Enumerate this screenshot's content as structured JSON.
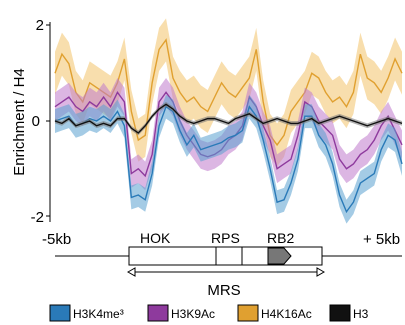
{
  "chart_data": {
    "type": "line",
    "ylabel": "Enrichment / H4",
    "ylim": [
      -2.1,
      2.1
    ],
    "yticks": [
      "2",
      "0",
      "-2"
    ],
    "xlim": [
      0,
      100
    ],
    "x_tick_labels": {
      "left": "-5kb",
      "right": "+ 5kb"
    },
    "grid": false,
    "legend_position": "bottom",
    "x": [
      0,
      2,
      4,
      6,
      8,
      10,
      12,
      14,
      16,
      18,
      20,
      22,
      24,
      26,
      28,
      30,
      32,
      34,
      36,
      38,
      40,
      42,
      44,
      46,
      48,
      50,
      52,
      54,
      56,
      58,
      60,
      62,
      64,
      66,
      68,
      70,
      72,
      74,
      76,
      78,
      80,
      82,
      84,
      86,
      88,
      90,
      92,
      94,
      96,
      98,
      100
    ],
    "series": [
      {
        "name": "H3K4me³",
        "color": "#2a7ab8",
        "band_color": "#5aa0d0",
        "values": [
          0.0,
          0.05,
          0.1,
          -0.1,
          -0.05,
          0.05,
          0.0,
          0.1,
          0.0,
          0.2,
          -0.1,
          -1.6,
          -1.55,
          -1.65,
          -1.1,
          -0.1,
          0.3,
          0.2,
          -0.2,
          -0.5,
          -0.3,
          -0.6,
          -0.55,
          -0.5,
          -0.45,
          -0.35,
          -0.3,
          -0.2,
          0.3,
          0.1,
          -0.4,
          -1.0,
          -1.7,
          -1.65,
          -1.3,
          -0.8,
          0.1,
          0.1,
          -0.3,
          -0.5,
          -0.9,
          -1.55,
          -1.9,
          -1.7,
          -1.3,
          -1.2,
          -1.1,
          -0.6,
          -0.3,
          -0.4,
          -0.9
        ],
        "spread": 0.25
      },
      {
        "name": "H3K9Ac",
        "color": "#8e3a9d",
        "band_color": "#c07acc",
        "values": [
          0.3,
          0.4,
          0.5,
          0.3,
          0.2,
          0.4,
          0.3,
          0.5,
          0.3,
          0.6,
          0.4,
          -1.1,
          -1.0,
          -1.15,
          -0.7,
          0.4,
          0.6,
          0.4,
          0.0,
          -0.3,
          -0.5,
          -0.7,
          -0.75,
          -0.7,
          -0.6,
          -0.4,
          -0.3,
          -0.1,
          0.5,
          0.3,
          -0.1,
          -0.4,
          -1.0,
          -0.9,
          -0.8,
          -0.3,
          0.4,
          0.3,
          0.0,
          -0.15,
          -0.3,
          -0.8,
          -1.0,
          -0.9,
          -0.7,
          -0.6,
          -0.4,
          -0.1,
          0.1,
          -0.2,
          -0.5
        ],
        "spread": 0.3
      },
      {
        "name": "H4K16Ac",
        "color": "#e0a030",
        "band_color": "#f2c36a",
        "values": [
          1.0,
          1.4,
          1.2,
          0.6,
          0.4,
          0.8,
          0.7,
          0.6,
          0.5,
          0.8,
          1.3,
          0.2,
          -0.4,
          -0.3,
          0.8,
          1.5,
          1.7,
          0.9,
          0.6,
          0.4,
          0.5,
          0.3,
          0.2,
          0.5,
          0.8,
          0.6,
          0.5,
          0.7,
          0.9,
          1.5,
          0.4,
          -0.3,
          -0.5,
          -0.3,
          0.2,
          0.4,
          0.6,
          1.0,
          0.9,
          0.6,
          0.4,
          0.5,
          0.3,
          0.6,
          1.4,
          0.9,
          0.8,
          0.6,
          0.9,
          1.3,
          1.0
        ],
        "spread": 0.45
      },
      {
        "name": "H3",
        "color": "#111111",
        "band_color": "#777777",
        "values": [
          0.0,
          -0.05,
          0.05,
          -0.1,
          -0.05,
          0.0,
          -0.1,
          -0.05,
          -0.1,
          0.05,
          0.05,
          -0.15,
          -0.25,
          -0.1,
          0.1,
          0.25,
          0.35,
          0.25,
          0.1,
          0.0,
          -0.05,
          0.0,
          0.05,
          0.05,
          0.0,
          -0.05,
          0.05,
          0.1,
          0.15,
          0.05,
          -0.05,
          0.0,
          0.05,
          0.0,
          -0.05,
          -0.05,
          0.0,
          0.05,
          -0.05,
          0.0,
          0.05,
          0.1,
          0.05,
          0.0,
          -0.05,
          -0.1,
          -0.05,
          0.0,
          0.05,
          0.0,
          -0.05
        ],
        "spread": 0.05
      }
    ],
    "annotations": {
      "region_labels": [
        "HOK",
        "RPS",
        "RB2"
      ],
      "region_x": [
        28,
        45,
        60
      ],
      "map_label": "MRS"
    }
  }
}
